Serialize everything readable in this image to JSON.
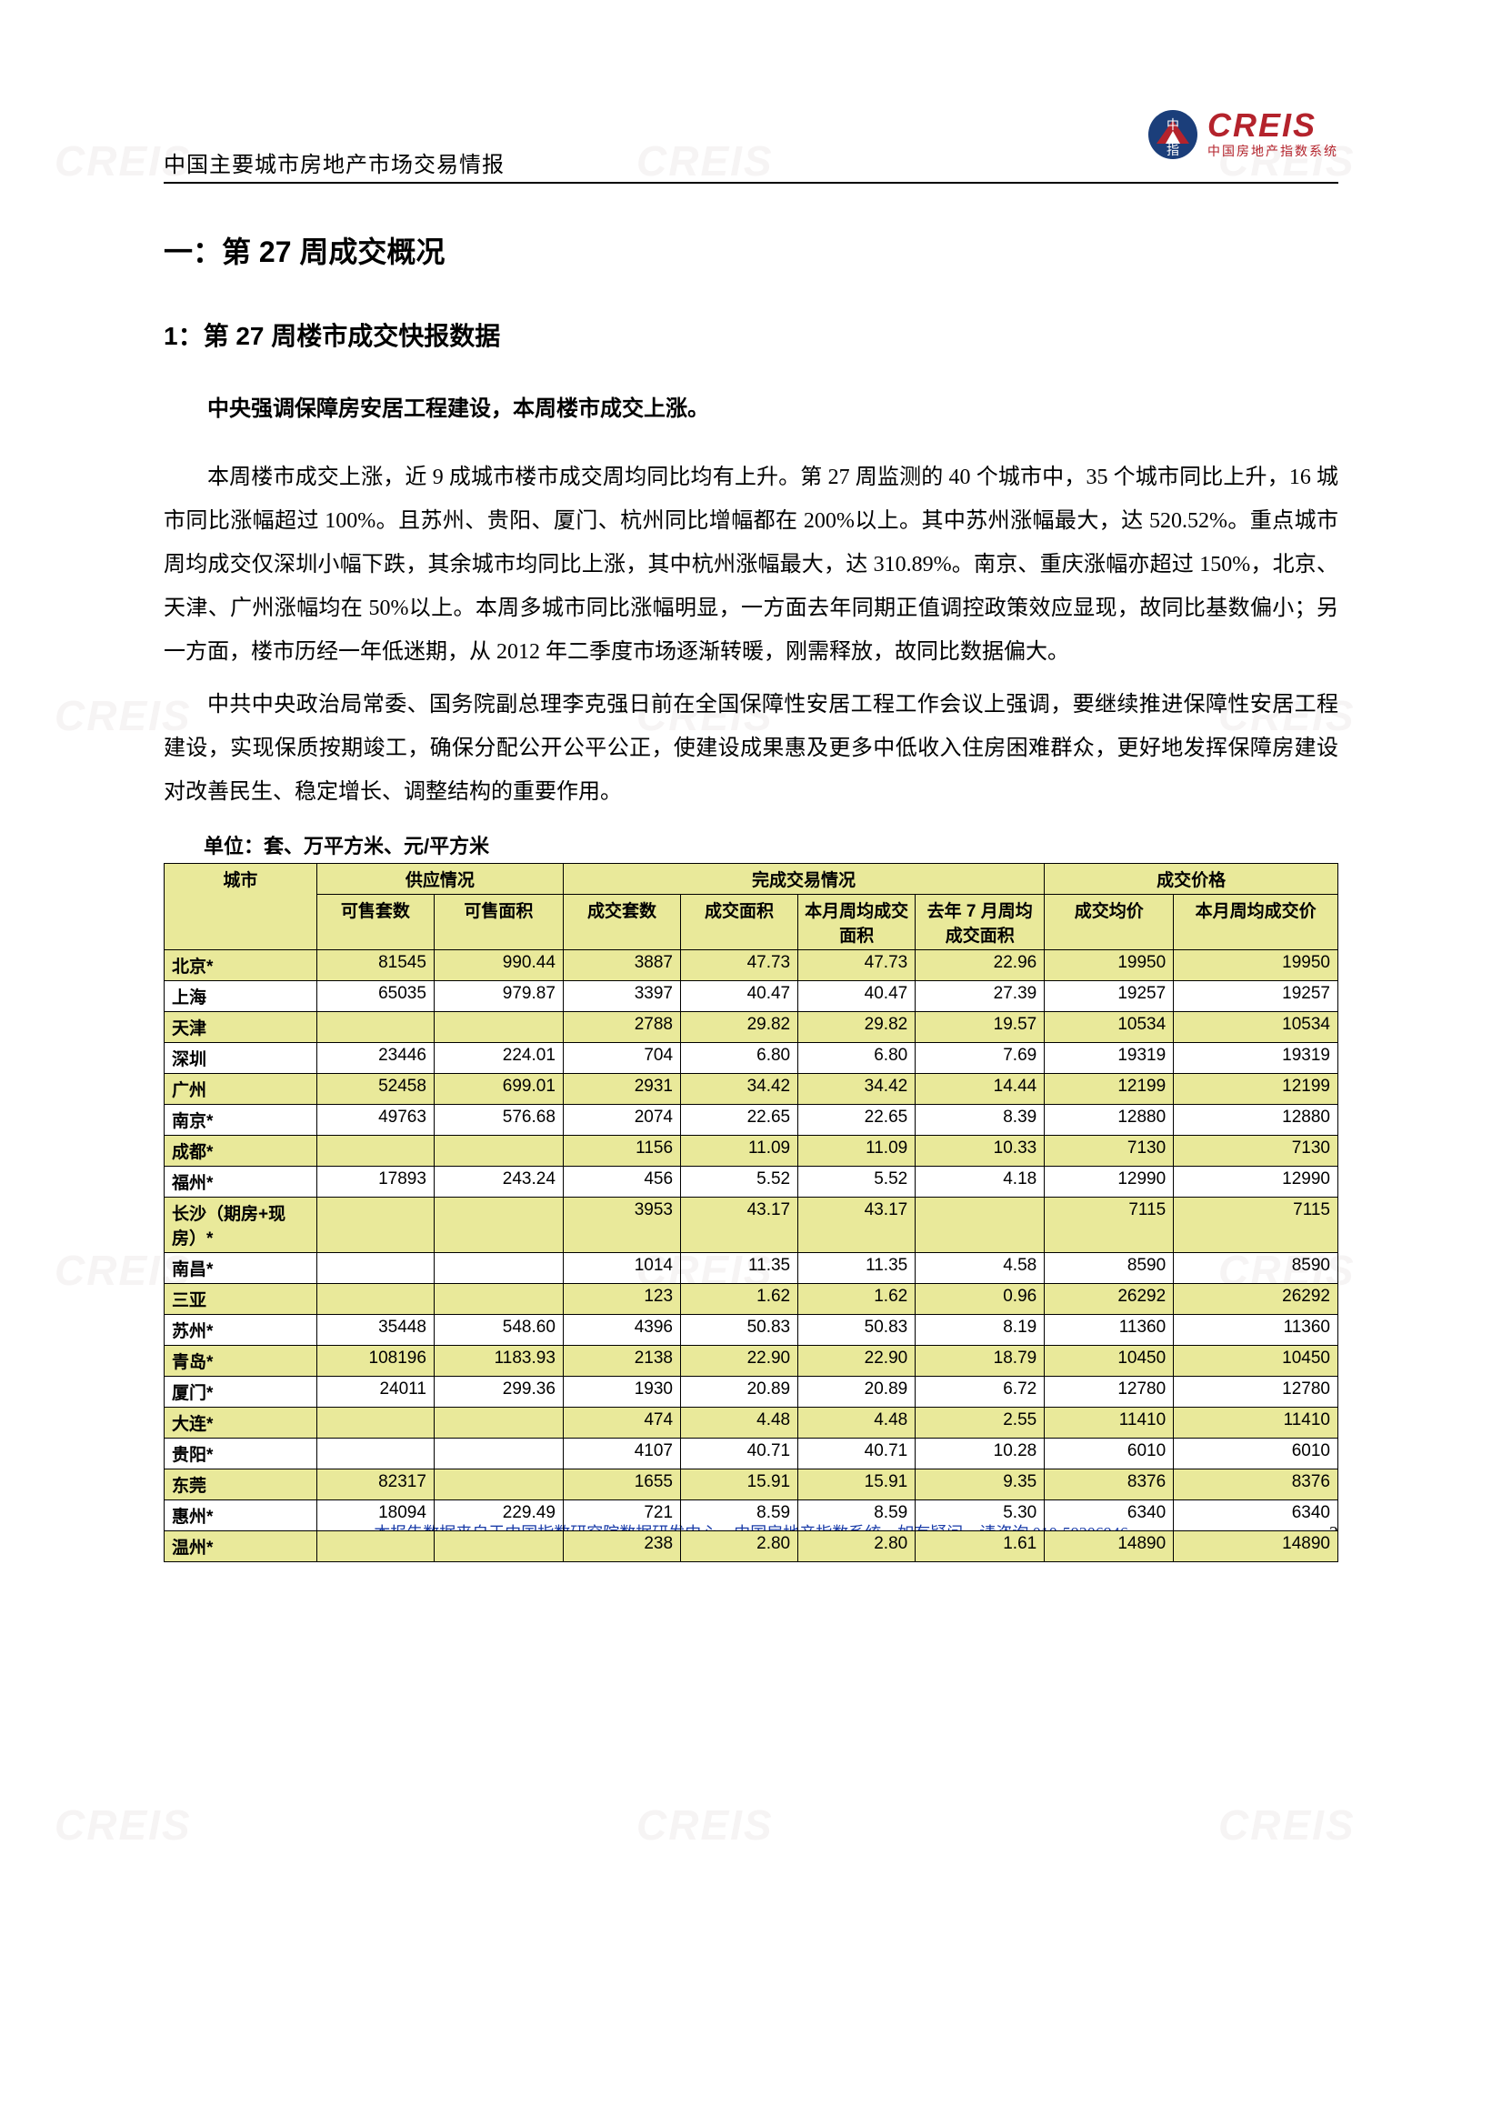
{
  "header": {
    "doc_title": "中国主要城市房地产市场交易情报",
    "logo_main": "CREIS",
    "logo_sub": "中国房地产指数系统"
  },
  "section": {
    "h1": "一：第 27 周成交概况",
    "h2": "1：第 27 周楼市成交快报数据",
    "lead": "中央强调保障房安居工程建设，本周楼市成交上涨。",
    "para1": "本周楼市成交上涨，近 9 成城市楼市成交周均同比均有上升。第 27 周监测的 40 个城市中，35 个城市同比上升，16 城市同比涨幅超过 100%。且苏州、贵阳、厦门、杭州同比增幅都在 200%以上。其中苏州涨幅最大，达 520.52%。重点城市周均成交仅深圳小幅下跌，其余城市均同比上涨，其中杭州涨幅最大，达 310.89%。南京、重庆涨幅亦超过 150%，北京、天津、广州涨幅均在 50%以上。本周多城市同比涨幅明显，一方面去年同期正值调控政策效应显现，故同比基数偏小；另一方面，楼市历经一年低迷期，从 2012 年二季度市场逐渐转暖，刚需释放，故同比数据偏大。",
    "para2": "中共中央政治局常委、国务院副总理李克强日前在全国保障性安居工程工作会议上强调，要继续推进保障性安居工程建设，实现保质按期竣工，确保分配公开公平公正，使建设成果惠及更多中低收入住房困难群众，更好地发挥保障房建设对改善民生、稳定增长、调整结构的重要作用。",
    "unit": "单位：套、万平方米、元/平方米"
  },
  "table": {
    "group_headers": [
      "城市",
      "供应情况",
      "完成交易情况",
      "成交价格"
    ],
    "sub_headers": [
      "可售套数",
      "可售面积",
      "成交套数",
      "成交面积",
      "本月周均成交面积",
      "去年 7 月周均成交面积",
      "成交均价",
      "本月周均成交价"
    ],
    "col_widths": [
      "13%",
      "10%",
      "11%",
      "10%",
      "10%",
      "10%",
      "11%",
      "11%",
      "14%"
    ],
    "highlight_color": "#e9e99a",
    "border_color": "#000000",
    "rows": [
      {
        "city": "北京*",
        "hl": true,
        "v": [
          "81545",
          "990.44",
          "3887",
          "47.73",
          "47.73",
          "22.96",
          "19950",
          "19950"
        ]
      },
      {
        "city": "上海",
        "hl": false,
        "v": [
          "65035",
          "979.87",
          "3397",
          "40.47",
          "40.47",
          "27.39",
          "19257",
          "19257"
        ]
      },
      {
        "city": "天津",
        "hl": true,
        "v": [
          "",
          "",
          "2788",
          "29.82",
          "29.82",
          "19.57",
          "10534",
          "10534"
        ]
      },
      {
        "city": "深圳",
        "hl": false,
        "v": [
          "23446",
          "224.01",
          "704",
          "6.80",
          "6.80",
          "7.69",
          "19319",
          "19319"
        ]
      },
      {
        "city": "广州",
        "hl": true,
        "v": [
          "52458",
          "699.01",
          "2931",
          "34.42",
          "34.42",
          "14.44",
          "12199",
          "12199"
        ]
      },
      {
        "city": "南京*",
        "hl": false,
        "v": [
          "49763",
          "576.68",
          "2074",
          "22.65",
          "22.65",
          "8.39",
          "12880",
          "12880"
        ]
      },
      {
        "city": "成都*",
        "hl": true,
        "v": [
          "",
          "",
          "1156",
          "11.09",
          "11.09",
          "10.33",
          "7130",
          "7130"
        ]
      },
      {
        "city": "福州*",
        "hl": false,
        "v": [
          "17893",
          "243.24",
          "456",
          "5.52",
          "5.52",
          "4.18",
          "12990",
          "12990"
        ]
      },
      {
        "city": "长沙（期房+现房）*",
        "hl": true,
        "v": [
          "",
          "",
          "3953",
          "43.17",
          "43.17",
          "",
          "7115",
          "7115"
        ]
      },
      {
        "city": "南昌*",
        "hl": false,
        "v": [
          "",
          "",
          "1014",
          "11.35",
          "11.35",
          "4.58",
          "8590",
          "8590"
        ]
      },
      {
        "city": "三亚",
        "hl": true,
        "v": [
          "",
          "",
          "123",
          "1.62",
          "1.62",
          "0.96",
          "26292",
          "26292"
        ]
      },
      {
        "city": "苏州*",
        "hl": false,
        "v": [
          "35448",
          "548.60",
          "4396",
          "50.83",
          "50.83",
          "8.19",
          "11360",
          "11360"
        ]
      },
      {
        "city": "青岛*",
        "hl": true,
        "v": [
          "108196",
          "1183.93",
          "2138",
          "22.90",
          "22.90",
          "18.79",
          "10450",
          "10450"
        ]
      },
      {
        "city": "厦门*",
        "hl": false,
        "v": [
          "24011",
          "299.36",
          "1930",
          "20.89",
          "20.89",
          "6.72",
          "12780",
          "12780"
        ]
      },
      {
        "city": "大连*",
        "hl": true,
        "v": [
          "",
          "",
          "474",
          "4.48",
          "4.48",
          "2.55",
          "11410",
          "11410"
        ]
      },
      {
        "city": "贵阳*",
        "hl": false,
        "v": [
          "",
          "",
          "4107",
          "40.71",
          "40.71",
          "10.28",
          "6010",
          "6010"
        ]
      },
      {
        "city": "东莞",
        "hl": true,
        "v": [
          "82317",
          "",
          "1655",
          "15.91",
          "15.91",
          "9.35",
          "8376",
          "8376"
        ]
      },
      {
        "city": "惠州*",
        "hl": false,
        "v": [
          "18094",
          "229.49",
          "721",
          "8.59",
          "8.59",
          "5.30",
          "6340",
          "6340"
        ]
      },
      {
        "city": "温州*",
        "hl": true,
        "v": [
          "",
          "",
          "238",
          "2.80",
          "2.80",
          "1.61",
          "14890",
          "14890"
        ]
      }
    ]
  },
  "footer": {
    "text": "本报告数据来自于中国指数研究院数据研发中心、中国房地产指数系统，如有疑问，请咨询 010-59306946",
    "page": "2"
  },
  "watermark": {
    "text": "CREIS"
  }
}
